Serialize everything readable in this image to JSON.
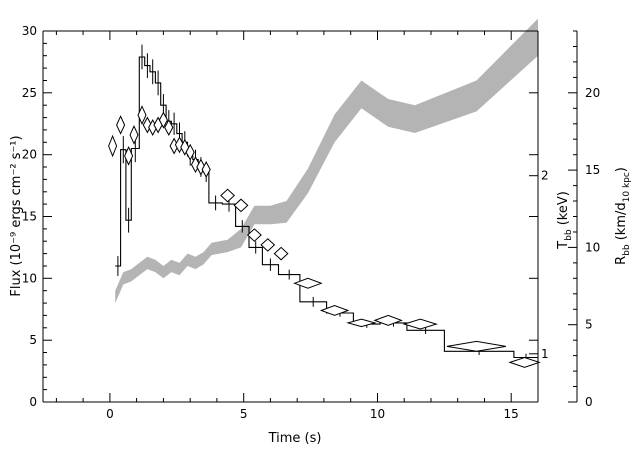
{
  "chart_data": {
    "type": "line",
    "title": "",
    "xlabel": "Time (s)",
    "ylabel": "Flux (10⁻⁹ ergs cm⁻² s⁻¹)",
    "xlim": [
      -2.5,
      16
    ],
    "ylim": [
      0,
      30
    ],
    "x_ticks": [
      "0",
      "5",
      "10",
      "15"
    ],
    "y_ticks": [
      "0",
      "5",
      "10",
      "15",
      "20",
      "25",
      "30"
    ],
    "right_axes": [
      {
        "label": "T_bb (keV)",
        "label_main": "T",
        "label_sub": "bb",
        "label_rest": " (keV)",
        "ticks": [
          {
            "label": "1",
            "flux": 3.9
          },
          {
            "label": "2",
            "flux": 18.3
          }
        ]
      },
      {
        "label": "R_bb (km/d_10 kpc)",
        "label_main": "R",
        "label_sub": "bb",
        "label_rest": " (km/d",
        "label_sub2": "10 kpc",
        "label_end": ")",
        "ylim": [
          0,
          24
        ],
        "ticks": [
          "0",
          "5",
          "10",
          "15",
          "20"
        ]
      }
    ],
    "series": [
      {
        "kind": "flux-step",
        "color": "#000000",
        "points": [
          {
            "x0": 0.2,
            "x1": 0.4,
            "y": 11.0,
            "err": 0.8
          },
          {
            "x0": 0.4,
            "x1": 0.6,
            "y": 20.4,
            "err": 1.1
          },
          {
            "x0": 0.6,
            "x1": 0.8,
            "y": 14.7,
            "err": 1.0
          },
          {
            "x0": 0.8,
            "x1": 1.1,
            "y": 20.5,
            "err": 1.1
          },
          {
            "x0": 1.1,
            "x1": 1.3,
            "y": 27.9,
            "err": 1.0
          },
          {
            "x0": 1.3,
            "x1": 1.5,
            "y": 27.2,
            "err": 1.0
          },
          {
            "x0": 1.5,
            "x1": 1.7,
            "y": 26.7,
            "err": 1.0
          },
          {
            "x0": 1.7,
            "x1": 1.9,
            "y": 25.8,
            "err": 1.0
          },
          {
            "x0": 1.9,
            "x1": 2.1,
            "y": 24.0,
            "err": 0.9
          },
          {
            "x0": 2.1,
            "x1": 2.3,
            "y": 22.7,
            "err": 0.9
          },
          {
            "x0": 2.3,
            "x1": 2.5,
            "y": 22.5,
            "err": 0.9
          },
          {
            "x0": 2.5,
            "x1": 2.7,
            "y": 21.7,
            "err": 0.9
          },
          {
            "x0": 2.7,
            "x1": 2.9,
            "y": 21.0,
            "err": 0.9
          },
          {
            "x0": 2.9,
            "x1": 3.1,
            "y": 19.9,
            "err": 0.8
          },
          {
            "x0": 3.1,
            "x1": 3.3,
            "y": 19.6,
            "err": 0.8
          },
          {
            "x0": 3.3,
            "x1": 3.5,
            "y": 19.0,
            "err": 0.8
          },
          {
            "x0": 3.5,
            "x1": 3.7,
            "y": 18.6,
            "err": 0.8
          },
          {
            "x0": 3.7,
            "x1": 4.2,
            "y": 16.1,
            "err": 0.6
          },
          {
            "x0": 4.2,
            "x1": 4.7,
            "y": 16.0,
            "err": 0.6
          },
          {
            "x0": 4.7,
            "x1": 5.2,
            "y": 14.2,
            "err": 0.5
          },
          {
            "x0": 5.2,
            "x1": 5.7,
            "y": 12.5,
            "err": 0.5
          },
          {
            "x0": 5.7,
            "x1": 6.3,
            "y": 11.1,
            "err": 0.5
          },
          {
            "x0": 6.3,
            "x1": 7.1,
            "y": 10.3,
            "err": 0.4
          },
          {
            "x0": 7.1,
            "x1": 8.1,
            "y": 8.1,
            "err": 0.4
          },
          {
            "x0": 8.1,
            "x1": 9.1,
            "y": 7.2,
            "err": 0.3
          },
          {
            "x0": 9.1,
            "x1": 10.1,
            "y": 6.3,
            "err": 0.3
          },
          {
            "x0": 10.1,
            "x1": 11.1,
            "y": 6.4,
            "err": 0.3
          },
          {
            "x0": 11.1,
            "x1": 12.5,
            "y": 5.8,
            "err": 0.3
          },
          {
            "x0": 12.5,
            "x1": 15.1,
            "y": 4.1,
            "err": 0.3
          },
          {
            "x0": 15.1,
            "x1": 16.0,
            "y": 3.6,
            "err": 0.3
          }
        ]
      },
      {
        "kind": "temperature-diamonds",
        "color": "#000000",
        "points": [
          {
            "x": 0.1,
            "y": 20.7,
            "hw": 0.15,
            "hh": 0.8
          },
          {
            "x": 0.4,
            "y": 22.4,
            "hw": 0.15,
            "hh": 0.7
          },
          {
            "x": 0.7,
            "y": 19.9,
            "hw": 0.15,
            "hh": 0.7
          },
          {
            "x": 0.9,
            "y": 21.6,
            "hw": 0.15,
            "hh": 0.7
          },
          {
            "x": 1.2,
            "y": 23.2,
            "hw": 0.15,
            "hh": 0.7
          },
          {
            "x": 1.4,
            "y": 22.4,
            "hw": 0.15,
            "hh": 0.6
          },
          {
            "x": 1.6,
            "y": 22.2,
            "hw": 0.15,
            "hh": 0.6
          },
          {
            "x": 1.8,
            "y": 22.4,
            "hw": 0.15,
            "hh": 0.6
          },
          {
            "x": 2.0,
            "y": 22.8,
            "hw": 0.15,
            "hh": 0.6
          },
          {
            "x": 2.2,
            "y": 22.2,
            "hw": 0.15,
            "hh": 0.6
          },
          {
            "x": 2.4,
            "y": 20.7,
            "hw": 0.15,
            "hh": 0.6
          },
          {
            "x": 2.6,
            "y": 20.8,
            "hw": 0.15,
            "hh": 0.6
          },
          {
            "x": 2.8,
            "y": 20.6,
            "hw": 0.15,
            "hh": 0.6
          },
          {
            "x": 3.0,
            "y": 20.2,
            "hw": 0.15,
            "hh": 0.6
          },
          {
            "x": 3.2,
            "y": 19.2,
            "hw": 0.15,
            "hh": 0.6
          },
          {
            "x": 3.4,
            "y": 19.0,
            "hw": 0.15,
            "hh": 0.6
          },
          {
            "x": 3.6,
            "y": 18.8,
            "hw": 0.15,
            "hh": 0.6
          },
          {
            "x": 4.4,
            "y": 16.7,
            "hw": 0.25,
            "hh": 0.5
          },
          {
            "x": 4.9,
            "y": 15.9,
            "hw": 0.25,
            "hh": 0.5
          },
          {
            "x": 5.4,
            "y": 13.5,
            "hw": 0.25,
            "hh": 0.5
          },
          {
            "x": 5.9,
            "y": 12.7,
            "hw": 0.25,
            "hh": 0.5
          },
          {
            "x": 6.4,
            "y": 12.0,
            "hw": 0.25,
            "hh": 0.5
          },
          {
            "x": 7.4,
            "y": 9.6,
            "hw": 0.5,
            "hh": 0.4
          },
          {
            "x": 8.4,
            "y": 7.4,
            "hw": 0.5,
            "hh": 0.4
          },
          {
            "x": 9.4,
            "y": 6.4,
            "hw": 0.5,
            "hh": 0.3
          },
          {
            "x": 10.4,
            "y": 6.6,
            "hw": 0.5,
            "hh": 0.4
          },
          {
            "x": 11.6,
            "y": 6.3,
            "hw": 0.6,
            "hh": 0.4
          },
          {
            "x": 13.7,
            "y": 4.5,
            "hw": 1.1,
            "hh": 0.4
          },
          {
            "x": 15.5,
            "y": 3.2,
            "hw": 0.55,
            "hh": 0.4
          }
        ]
      },
      {
        "kind": "radius-band",
        "color": "#b4b4b4",
        "points": [
          {
            "x": 0.2,
            "lo": 6.4,
            "hi": 7.2
          },
          {
            "x": 0.5,
            "lo": 7.6,
            "hi": 8.4
          },
          {
            "x": 0.8,
            "lo": 7.8,
            "hi": 8.6
          },
          {
            "x": 1.1,
            "lo": 8.2,
            "hi": 9.0
          },
          {
            "x": 1.4,
            "lo": 8.6,
            "hi": 9.4
          },
          {
            "x": 1.7,
            "lo": 8.4,
            "hi": 9.2
          },
          {
            "x": 2.0,
            "lo": 8.0,
            "hi": 8.8
          },
          {
            "x": 2.3,
            "lo": 8.4,
            "hi": 9.2
          },
          {
            "x": 2.6,
            "lo": 8.2,
            "hi": 9.0
          },
          {
            "x": 2.9,
            "lo": 8.8,
            "hi": 9.6
          },
          {
            "x": 3.2,
            "lo": 8.6,
            "hi": 9.4
          },
          {
            "x": 3.5,
            "lo": 8.9,
            "hi": 9.7
          },
          {
            "x": 3.8,
            "lo": 9.5,
            "hi": 10.3
          },
          {
            "x": 4.4,
            "lo": 9.7,
            "hi": 10.5
          },
          {
            "x": 4.9,
            "lo": 10.0,
            "hi": 11.2
          },
          {
            "x": 5.4,
            "lo": 11.5,
            "hi": 12.7
          },
          {
            "x": 6.0,
            "lo": 11.5,
            "hi": 12.7
          },
          {
            "x": 6.6,
            "lo": 11.6,
            "hi": 13.0
          },
          {
            "x": 7.4,
            "lo": 13.5,
            "hi": 15.1
          },
          {
            "x": 8.4,
            "lo": 16.8,
            "hi": 18.6
          },
          {
            "x": 9.4,
            "lo": 19.0,
            "hi": 20.8
          },
          {
            "x": 10.4,
            "lo": 17.8,
            "hi": 19.6
          },
          {
            "x": 11.4,
            "lo": 17.4,
            "hi": 19.2
          },
          {
            "x": 13.7,
            "lo": 18.8,
            "hi": 20.8
          },
          {
            "x": 16.0,
            "lo": 22.4,
            "hi": 24.8
          }
        ]
      }
    ]
  }
}
